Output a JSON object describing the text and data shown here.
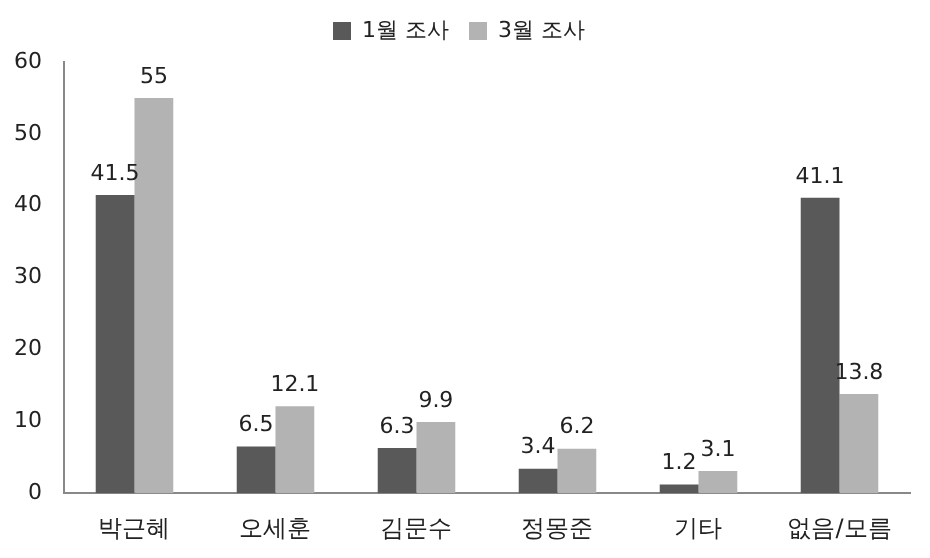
{
  "chart_data": {
    "type": "bar",
    "categories": [
      "박근혜",
      "오세훈",
      "김문수",
      "정몽준",
      "기타",
      "없음/모름"
    ],
    "series": [
      {
        "name": "1월 조사",
        "color": "#595959",
        "values": [
          41.5,
          6.5,
          6.3,
          3.4,
          1.2,
          41.1
        ]
      },
      {
        "name": "3월 조사",
        "color": "#b3b3b3",
        "values": [
          55,
          12.1,
          9.9,
          6.2,
          3.1,
          13.8
        ]
      }
    ],
    "ylim": [
      0,
      60
    ],
    "yticks": [
      0,
      10,
      20,
      30,
      40,
      50,
      60
    ],
    "grid": false,
    "legend": "top",
    "data_labels": true
  }
}
